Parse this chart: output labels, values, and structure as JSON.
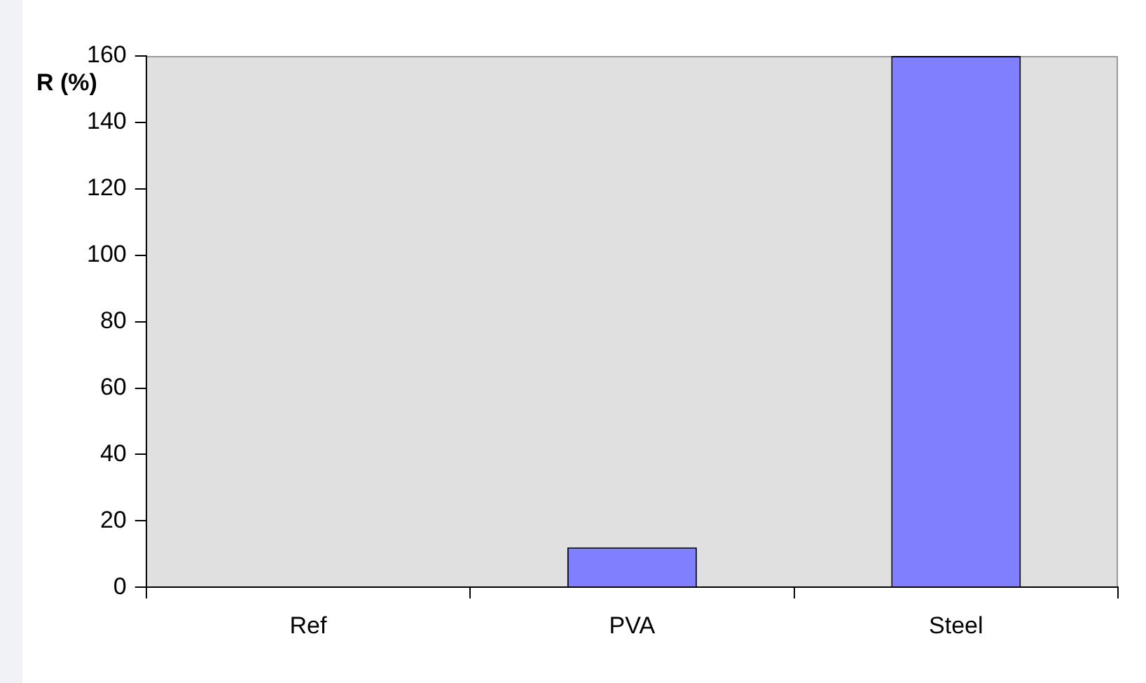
{
  "chart_data": {
    "type": "bar",
    "ylabel": "R (%)",
    "categories": [
      "Ref",
      "PVA",
      "Steel"
    ],
    "values": [
      0,
      12,
      160
    ],
    "color": "#8080ff",
    "ylim": [
      0,
      160
    ],
    "yticks": [
      0,
      20,
      40,
      60,
      80,
      100,
      120,
      140,
      160
    ],
    "grid": false,
    "legend": false
  }
}
